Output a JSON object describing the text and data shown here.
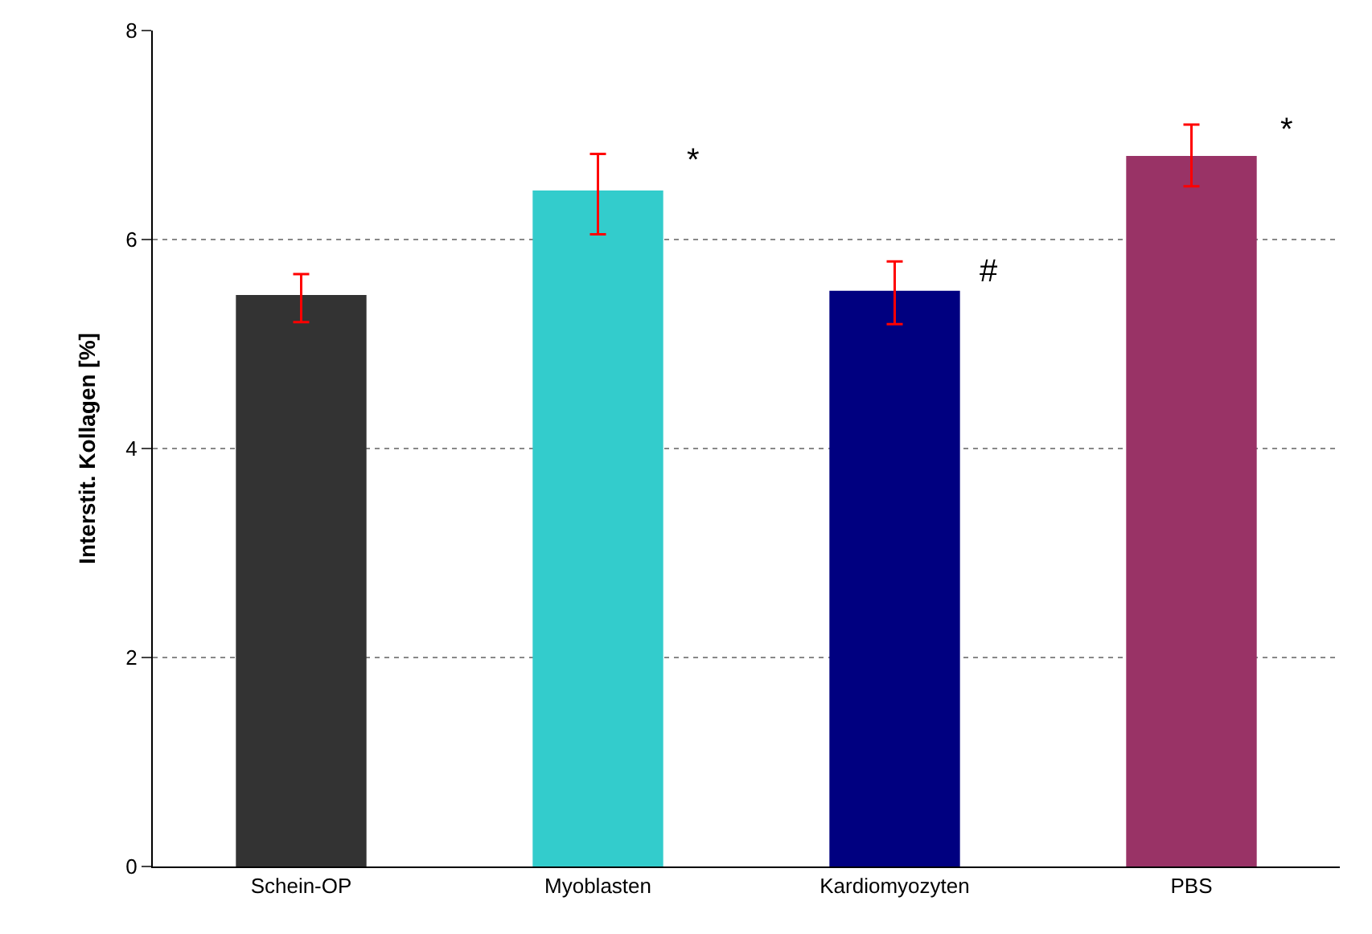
{
  "chart_data": {
    "type": "bar",
    "ylabel": "Interstit. Kollagen [%]",
    "categories": [
      "Schein-OP",
      "Myoblasten",
      "Kardiomyozyten",
      "PBS"
    ],
    "values": [
      5.47,
      6.47,
      5.51,
      6.8
    ],
    "colors": [
      "#333333",
      "#33cccc",
      "#000080",
      "#993366"
    ],
    "errors": [
      [
        5.21,
        5.67
      ],
      [
        6.05,
        6.82
      ],
      [
        5.19,
        5.79
      ],
      [
        6.51,
        7.1
      ]
    ],
    "ylim": [
      0,
      8
    ],
    "yticks": [
      0,
      2,
      4,
      6,
      8
    ],
    "grid": "y",
    "annotations": [
      {
        "text": "*",
        "x": "Myoblasten",
        "y": 6.75
      },
      {
        "text": "#",
        "x": "Kardiomyozyten",
        "y": 5.7
      },
      {
        "text": "*",
        "x": "PBS",
        "y": 7.05
      }
    ]
  }
}
